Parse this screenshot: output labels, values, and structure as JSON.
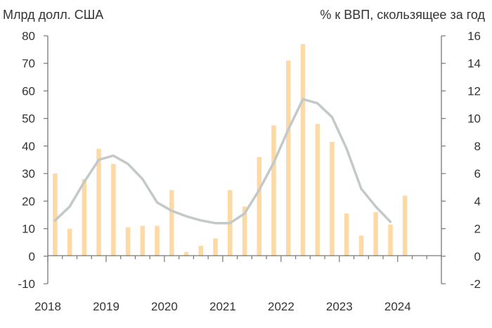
{
  "chart_data": {
    "type": "bar+line",
    "left_axis_label": "Млрд долл. США",
    "right_axis_label": "% к ВВП, скользящее за год",
    "left_ylim": [
      -10,
      80
    ],
    "left_ticks": [
      "80",
      "70",
      "60",
      "50",
      "40",
      "30",
      "20",
      "10",
      "0",
      "-10"
    ],
    "right_ylim": [
      -2,
      16
    ],
    "right_ticks": [
      "16",
      "14",
      "12",
      "10",
      "8",
      "6",
      "4",
      "2",
      "0",
      "-2"
    ],
    "x_ticks": [
      "2018",
      "2019",
      "2020",
      "2021",
      "2022",
      "2023",
      "2024"
    ],
    "x_start": 2018.0,
    "x_end": 2024.75,
    "grid": false,
    "colors": {
      "bars": "#fdd9a5",
      "line": "#c3c8c8",
      "axis": "#777777",
      "text": "#333333"
    },
    "bar_series": {
      "axis": "left",
      "x": [
        2018.125,
        2018.375,
        2018.625,
        2018.875,
        2019.125,
        2019.375,
        2019.625,
        2019.875,
        2020.125,
        2020.375,
        2020.625,
        2020.875,
        2021.125,
        2021.375,
        2021.625,
        2021.875,
        2022.125,
        2022.375,
        2022.625,
        2022.875,
        2023.125,
        2023.375,
        2023.625,
        2023.875,
        2024.125
      ],
      "values": [
        30,
        10,
        28,
        39,
        33.5,
        10.5,
        11,
        11,
        24,
        1.5,
        3.8,
        6.5,
        24,
        18,
        36,
        47.5,
        71,
        77,
        48,
        41.5,
        15.5,
        7.5,
        16,
        11.5,
        22
      ]
    },
    "line_series": {
      "axis": "right",
      "x": [
        2018.125,
        2018.375,
        2018.625,
        2018.875,
        2019.125,
        2019.375,
        2019.625,
        2019.875,
        2020.125,
        2020.375,
        2020.625,
        2020.875,
        2021.125,
        2021.375,
        2021.625,
        2021.875,
        2022.125,
        2022.375,
        2022.625,
        2022.875,
        2023.125,
        2023.375,
        2023.625,
        2023.875
      ],
      "values": [
        2.6,
        3.6,
        5.4,
        7.0,
        7.3,
        6.7,
        5.6,
        3.9,
        3.3,
        2.9,
        2.6,
        2.4,
        2.4,
        3.1,
        4.8,
        6.8,
        9.2,
        11.4,
        11.1,
        10.1,
        7.8,
        4.9,
        3.6,
        2.5
      ]
    }
  }
}
